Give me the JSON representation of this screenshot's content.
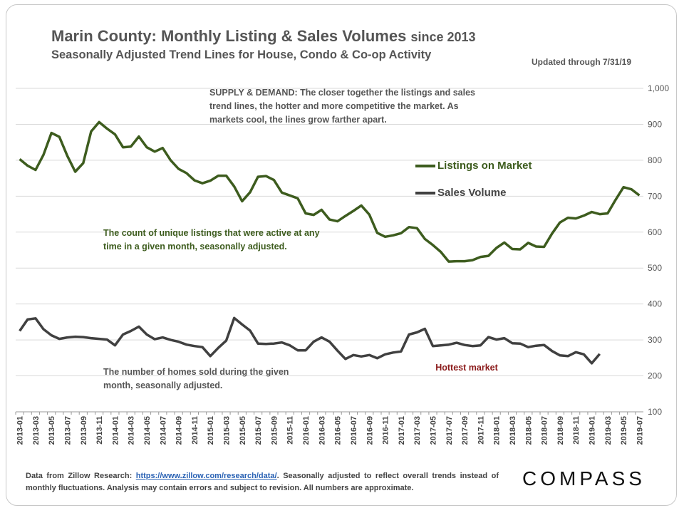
{
  "header": {
    "title_main": "Marin County: Monthly Listing & Sales Volumes",
    "title_suffix": "since 2013",
    "subtitle": "Seasonally Adjusted Trend Lines for House, Condo & Co-op Activity",
    "updated": "Updated through 7/31/19"
  },
  "annotations": {
    "supply": "SUPPLY & DEMAND: The closer together the listings and sales trend lines, the hotter and more competitive the market. As markets cool, the lines grow farther apart.",
    "listings": "The count of unique listings that were active at any time in a given month, seasonally adjusted.",
    "sales": "The number of homes sold during the given month, seasonally adjusted.",
    "hottest": "Hottest market"
  },
  "footer": {
    "prefix": "Data from Zillow Research: ",
    "link": "https://www.zillow.com/research/data/",
    "suffix": ". Seasonally adjusted to reflect overall trends instead of monthly fluctuations. Analysis may contain errors and subject to revision. All numbers are approximate."
  },
  "logo": "COMPASS",
  "colors": {
    "listings": "#3d5c1e",
    "sales": "#404040",
    "grid": "#d9d9d9",
    "hottest": "#8b1a1a"
  },
  "chart_data": {
    "type": "line",
    "ylim": [
      100,
      1000
    ],
    "yticks": [
      "100",
      "200",
      "300",
      "400",
      "500",
      "600",
      "700",
      "800",
      "900",
      "1,000"
    ],
    "grid": true,
    "legend_position": "right",
    "x": [
      "2013-01",
      "2013-02",
      "2013-03",
      "2013-04",
      "2013-05",
      "2013-06",
      "2013-07",
      "2013-08",
      "2013-09",
      "2013-10",
      "2013-11",
      "2013-12",
      "2014-01",
      "2014-02",
      "2014-03",
      "2014-04",
      "2014-05",
      "2014-06",
      "2014-07",
      "2014-08",
      "2014-09",
      "2014-10",
      "2014-11",
      "2014-12",
      "2015-01",
      "2015-02",
      "2015-03",
      "2015-04",
      "2015-05",
      "2015-06",
      "2015-07",
      "2015-08",
      "2015-09",
      "2015-10",
      "2015-11",
      "2015-12",
      "2016-01",
      "2016-02",
      "2016-03",
      "2016-04",
      "2016-05",
      "2016-06",
      "2016-07",
      "2016-08",
      "2016-09",
      "2016-10",
      "2016-11",
      "2016-12",
      "2017-01",
      "2017-02",
      "2017-03",
      "2017-04",
      "2017-05",
      "2017-06",
      "2017-07",
      "2017-08",
      "2017-09",
      "2017-10",
      "2017-11",
      "2017-12",
      "2018-01",
      "2018-02",
      "2018-03",
      "2018-04",
      "2018-05",
      "2018-06",
      "2018-07",
      "2018-08",
      "2018-09",
      "2018-10",
      "2018-11",
      "2018-12",
      "2019-01",
      "2019-02",
      "2019-03",
      "2019-04",
      "2019-05",
      "2019-06",
      "2019-07"
    ],
    "xtick_labels": [
      "2013-01",
      "2013-03",
      "2013-05",
      "2013-07",
      "2013-09",
      "2013-11",
      "2014-01",
      "2014-03",
      "2014-05",
      "2014-07",
      "2014-09",
      "2014-11",
      "2015-01",
      "2015-03",
      "2015-05",
      "2015-07",
      "2015-09",
      "2015-11",
      "2016-01",
      "2016-03",
      "2016-05",
      "2016-07",
      "2016-09",
      "2016-11",
      "2017-01",
      "2017-03",
      "2017-05",
      "2017-07",
      "2017-09",
      "2017-11",
      "2018-01",
      "2018-03",
      "2018-05",
      "2018-07",
      "2018-09",
      "2018-11",
      "2019-01",
      "2019-03",
      "2019-05",
      "2019-07"
    ],
    "series": [
      {
        "name": "Listings on Market",
        "values": [
          803,
          785,
          773,
          815,
          876,
          865,
          812,
          768,
          792,
          880,
          906,
          888,
          872,
          836,
          838,
          866,
          836,
          824,
          834,
          800,
          776,
          764,
          744,
          736,
          743,
          757,
          757,
          727,
          686,
          711,
          754,
          756,
          745,
          710,
          702,
          694,
          652,
          648,
          662,
          635,
          630,
          645,
          659,
          674,
          649,
          598,
          587,
          591,
          597,
          614,
          611,
          581,
          564,
          545,
          518,
          519,
          519,
          522,
          531,
          534,
          556,
          571,
          553,
          552,
          570,
          560,
          559,
          596,
          627,
          640,
          638,
          646,
          656,
          650,
          652,
          690,
          725,
          719,
          702
        ]
      },
      {
        "name": "Sales Volume",
        "values": [
          325,
          357,
          360,
          330,
          313,
          303,
          307,
          309,
          308,
          305,
          303,
          301,
          285,
          315,
          325,
          337,
          315,
          302,
          307,
          300,
          295,
          287,
          283,
          280,
          255,
          278,
          298,
          361,
          343,
          326,
          290,
          289,
          290,
          293,
          285,
          271,
          271,
          295,
          307,
          295,
          270,
          247,
          258,
          254,
          258,
          249,
          260,
          265,
          268,
          315,
          321,
          331,
          283,
          285,
          287,
          292,
          286,
          283,
          285,
          308,
          301,
          305,
          291,
          290,
          280,
          284,
          286,
          269,
          257,
          255,
          266,
          260,
          235,
          261,
          null,
          null,
          null,
          null,
          null
        ]
      }
    ]
  }
}
